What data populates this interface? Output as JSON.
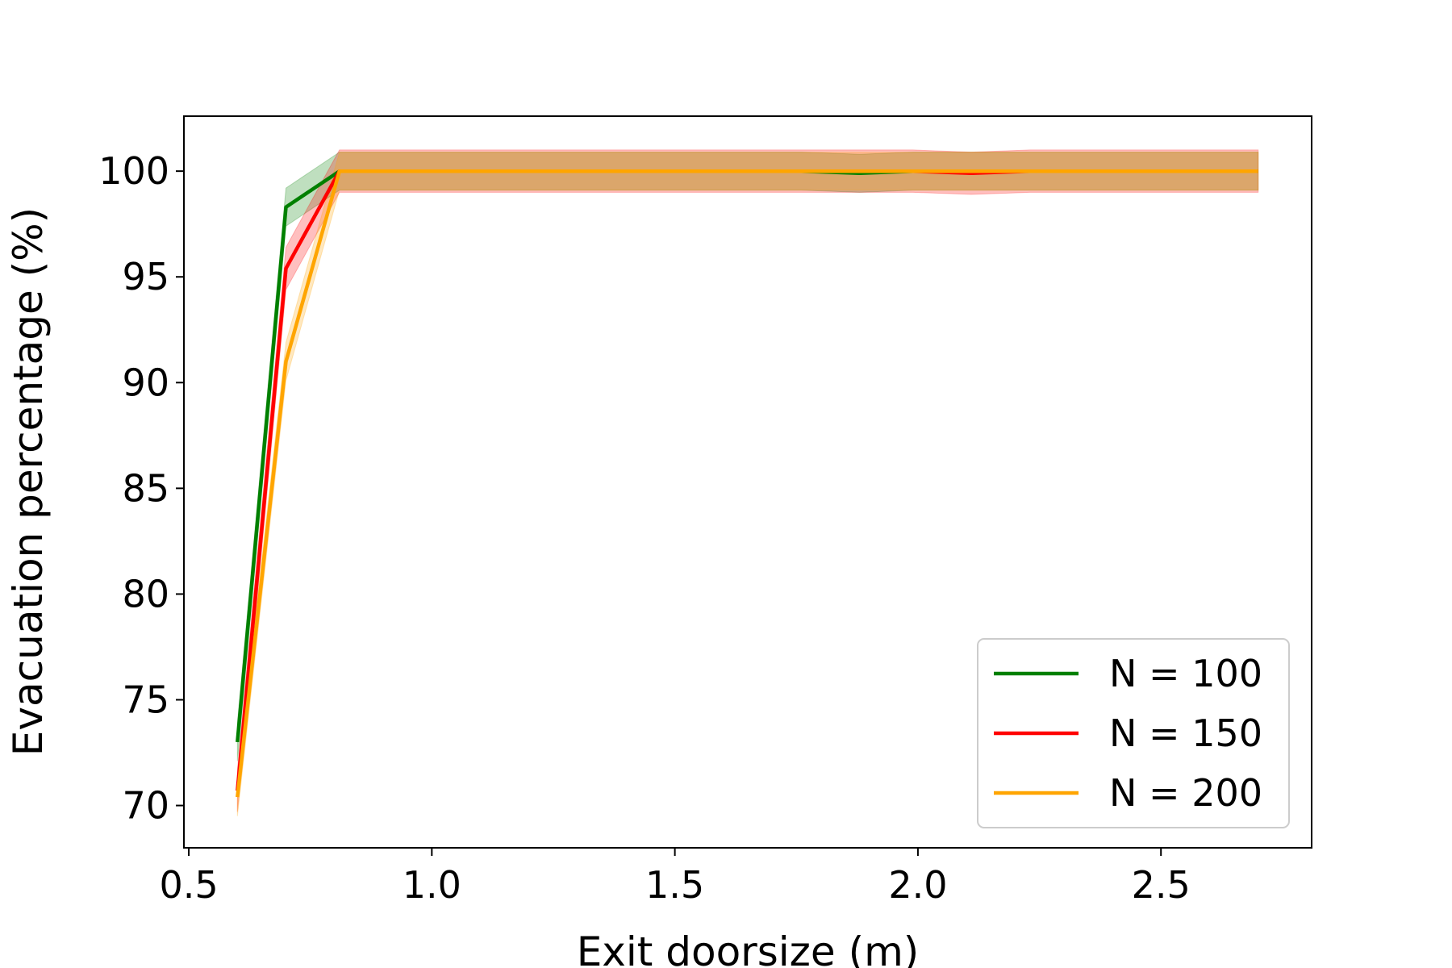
{
  "chart_data": {
    "type": "line",
    "title": "",
    "xlabel": "Exit doorsize (m)",
    "ylabel": "Evacuation percentage (%)",
    "xlim": [
      0.49,
      2.81
    ],
    "ylim": [
      68.0,
      102.6
    ],
    "xticks": [
      0.5,
      1.0,
      1.5,
      2.0,
      2.5
    ],
    "xtick_labels": [
      "0.5",
      "1.0",
      "1.5",
      "2.0",
      "2.5"
    ],
    "yticks": [
      70,
      75,
      80,
      85,
      90,
      95,
      100
    ],
    "ytick_labels": [
      "70",
      "75",
      "80",
      "85",
      "90",
      "95",
      "100"
    ],
    "grid": false,
    "legend_position": "bottom-right",
    "x": [
      0.6,
      0.7,
      0.81,
      0.93,
      1.05,
      1.17,
      1.28,
      1.4,
      1.52,
      1.64,
      1.76,
      1.88,
      1.99,
      2.11,
      2.23,
      2.35,
      2.47,
      2.59,
      2.7
    ],
    "series": [
      {
        "name": "N = 100",
        "color": "#008000",
        "values": [
          73.0,
          98.3,
          100.0,
          100.0,
          100.0,
          100.0,
          100.0,
          100.0,
          100.0,
          100.0,
          100.0,
          99.9,
          100.0,
          100.0,
          100.0,
          100.0,
          100.0,
          100.0,
          100.0
        ],
        "band": 0.9
      },
      {
        "name": "N = 150",
        "color": "#ff0000",
        "values": [
          70.7,
          95.4,
          100.0,
          100.0,
          100.0,
          100.0,
          100.0,
          100.0,
          100.0,
          100.0,
          100.0,
          100.0,
          100.0,
          99.9,
          100.0,
          100.0,
          100.0,
          100.0,
          100.0
        ],
        "band": 1.0
      },
      {
        "name": "N = 200",
        "color": "#ffa500",
        "values": [
          70.4,
          91.0,
          100.0,
          100.0,
          100.0,
          100.0,
          100.0,
          100.0,
          100.0,
          100.0,
          100.0,
          100.0,
          100.0,
          100.0,
          100.0,
          100.0,
          100.0,
          100.0,
          100.0
        ],
        "band": 0.9
      }
    ]
  }
}
